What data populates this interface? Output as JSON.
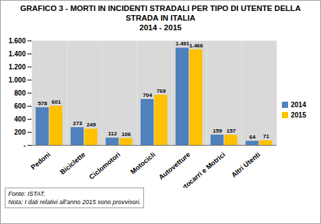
{
  "chart_data": {
    "type": "bar",
    "title": "GRAFICO 3 - MORTI IN INCIDENTI STRADALI PER TIPO DI UTENTE DELLA STRADA IN ITALIA",
    "subtitle": "2014 - 2015",
    "categories": [
      "Pedoni",
      "Biciclette",
      "Ciclomotori",
      "Motocicli",
      "Autovetture",
      "Autocarri e Motrici",
      "Altri Utenti"
    ],
    "series": [
      {
        "name": "2014",
        "color": "#4f81bd",
        "values": [
          578,
          273,
          112,
          704,
          1491,
          159,
          64
        ],
        "value_labels": [
          "578",
          "273",
          "112",
          "704",
          "1.491",
          "159",
          "64"
        ]
      },
      {
        "name": "2015",
        "color": "#ffc000",
        "values": [
          601,
          249,
          106,
          769,
          1466,
          157,
          71
        ],
        "value_labels": [
          "601",
          "249",
          "106",
          "769",
          "1.466",
          "157",
          "71"
        ]
      }
    ],
    "ylim": [
      0,
      1600
    ],
    "yticks": [
      {
        "value": 0,
        "label": "-"
      },
      200,
      400,
      600,
      800,
      {
        "value": 1000,
        "label": "1.000"
      },
      {
        "value": 1200,
        "label": "1.200"
      },
      {
        "value": 1400,
        "label": "1.400"
      },
      {
        "value": 1600,
        "label": "1.600"
      }
    ],
    "grid": true,
    "legend": "right",
    "data_labels": true,
    "annotations": [
      "Fonte: ISTAT.",
      "Nota: I dati relativi all'anno 2015 sono provvisori."
    ]
  }
}
